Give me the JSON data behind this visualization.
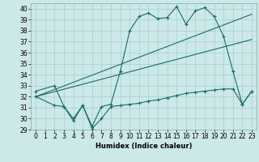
{
  "xlabel": "Humidex (Indice chaleur)",
  "bg_color": "#cce8e8",
  "grid_color": "#aacfcf",
  "line_color": "#1a6b6b",
  "xlim": [
    -0.5,
    23.5
  ],
  "ylim": [
    29,
    40.5
  ],
  "xticks": [
    0,
    1,
    2,
    3,
    4,
    5,
    6,
    7,
    8,
    9,
    10,
    11,
    12,
    13,
    14,
    15,
    16,
    17,
    18,
    19,
    20,
    21,
    22,
    23
  ],
  "yticks": [
    29,
    30,
    31,
    32,
    33,
    34,
    35,
    36,
    37,
    38,
    39,
    40
  ],
  "line1_x": [
    0,
    2,
    3,
    4,
    5,
    6,
    7,
    8,
    9,
    10,
    11,
    12,
    13,
    14,
    15,
    16,
    17,
    18,
    19,
    20,
    21,
    22,
    23
  ],
  "line1_y": [
    32.5,
    33.0,
    31.1,
    29.8,
    31.2,
    29.1,
    30.0,
    31.1,
    31.2,
    31.3,
    31.4,
    31.6,
    31.7,
    31.9,
    32.1,
    32.3,
    32.4,
    32.5,
    32.6,
    32.7,
    32.7,
    31.3,
    32.5
  ],
  "line2_x": [
    0,
    2,
    3,
    4,
    5,
    6,
    7,
    8,
    9,
    10,
    11,
    12,
    13,
    14,
    15,
    16,
    17,
    18,
    19,
    20,
    21,
    22,
    23
  ],
  "line2_y": [
    32.0,
    31.2,
    31.1,
    30.0,
    31.2,
    29.3,
    31.1,
    31.3,
    34.3,
    38.0,
    39.3,
    39.6,
    39.1,
    39.2,
    40.2,
    38.6,
    39.8,
    40.1,
    39.3,
    37.5,
    34.3,
    31.3,
    32.5
  ],
  "line3_x": [
    0,
    23
  ],
  "line3_y": [
    32.0,
    39.5
  ],
  "line4_x": [
    0,
    23
  ],
  "line4_y": [
    32.0,
    37.2
  ],
  "xlabel_fontsize": 6.0,
  "tick_fontsize": 5.5
}
